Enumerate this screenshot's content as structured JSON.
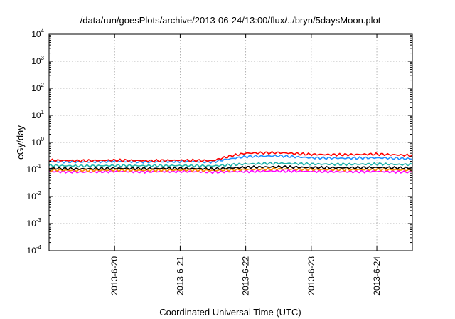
{
  "chart_data": {
    "type": "line",
    "title": "/data/run/goesPlots/archive/2013-06-24/13:00/flux/../bryn/5daysMoon.plot",
    "xlabel": "Coordinated Universal Time (UTC)",
    "ylabel": "cGy/day",
    "yscale": "log",
    "ylim": [
      0.0001,
      10000
    ],
    "y_ticks": [
      {
        "base": "10",
        "exp": "-4",
        "value": 0.0001
      },
      {
        "base": "10",
        "exp": "-3",
        "value": 0.001
      },
      {
        "base": "10",
        "exp": "-2",
        "value": 0.01
      },
      {
        "base": "10",
        "exp": "-1",
        "value": 0.1
      },
      {
        "base": "10",
        "exp": "0",
        "value": 1
      },
      {
        "base": "10",
        "exp": "1",
        "value": 10
      },
      {
        "base": "10",
        "exp": "2",
        "value": 100
      },
      {
        "base": "10",
        "exp": "3",
        "value": 1000
      },
      {
        "base": "10",
        "exp": "4",
        "value": 10000
      }
    ],
    "xlim": [
      "2013-06-19T00:00",
      "2013-06-24T13:00"
    ],
    "x_ticks": [
      {
        "label": "2013-6-20",
        "value": "2013-06-20T00:00"
      },
      {
        "label": "2013-6-21",
        "value": "2013-06-21T00:00"
      },
      {
        "label": "2013-6-22",
        "value": "2013-06-22T00:00"
      },
      {
        "label": "2013-6-23",
        "value": "2013-06-23T00:00"
      },
      {
        "label": "2013-6-24",
        "value": "2013-06-24T00:00"
      }
    ],
    "grid": true,
    "legend": "none",
    "series": [
      {
        "color": "#ff00ff",
        "x": [
          "2013-06-19T00:00",
          "2013-06-19T12:00",
          "2013-06-20T00:00",
          "2013-06-20T12:00",
          "2013-06-21T00:00",
          "2013-06-21T12:00",
          "2013-06-22T00:00",
          "2013-06-22T12:00",
          "2013-06-23T00:00",
          "2013-06-23T12:00",
          "2013-06-24T00:00",
          "2013-06-24T13:00"
        ],
        "values": [
          0.085,
          0.08,
          0.085,
          0.082,
          0.085,
          0.08,
          0.085,
          0.088,
          0.085,
          0.082,
          0.085,
          0.08
        ]
      },
      {
        "color": "#ff8c00",
        "x": [
          "2013-06-19T00:00",
          "2013-06-19T12:00",
          "2013-06-20T00:00",
          "2013-06-20T12:00",
          "2013-06-21T00:00",
          "2013-06-21T12:00",
          "2013-06-22T00:00",
          "2013-06-22T12:00",
          "2013-06-23T00:00",
          "2013-06-23T12:00",
          "2013-06-24T00:00",
          "2013-06-24T13:00"
        ],
        "values": [
          0.095,
          0.092,
          0.095,
          0.093,
          0.095,
          0.092,
          0.1,
          0.105,
          0.1,
          0.098,
          0.1,
          0.095
        ]
      },
      {
        "color": "#000000",
        "x": [
          "2013-06-19T00:00",
          "2013-06-19T12:00",
          "2013-06-20T00:00",
          "2013-06-20T12:00",
          "2013-06-21T00:00",
          "2013-06-21T12:00",
          "2013-06-22T00:00",
          "2013-06-22T12:00",
          "2013-06-23T00:00",
          "2013-06-23T12:00",
          "2013-06-24T00:00",
          "2013-06-24T13:00"
        ],
        "values": [
          0.11,
          0.105,
          0.11,
          0.108,
          0.11,
          0.105,
          0.12,
          0.125,
          0.118,
          0.115,
          0.118,
          0.112
        ]
      },
      {
        "color": "#20b2aa",
        "x": [
          "2013-06-19T00:00",
          "2013-06-19T12:00",
          "2013-06-20T00:00",
          "2013-06-20T12:00",
          "2013-06-21T00:00",
          "2013-06-21T12:00",
          "2013-06-22T00:00",
          "2013-06-22T12:00",
          "2013-06-23T00:00",
          "2013-06-23T12:00",
          "2013-06-24T00:00",
          "2013-06-24T13:00"
        ],
        "values": [
          0.14,
          0.135,
          0.14,
          0.137,
          0.14,
          0.135,
          0.16,
          0.17,
          0.16,
          0.155,
          0.16,
          0.15
        ]
      },
      {
        "color": "#1e90ff",
        "x": [
          "2013-06-19T00:00",
          "2013-06-19T12:00",
          "2013-06-20T00:00",
          "2013-06-20T12:00",
          "2013-06-21T00:00",
          "2013-06-21T12:00",
          "2013-06-22T00:00",
          "2013-06-22T12:00",
          "2013-06-23T00:00",
          "2013-06-23T12:00",
          "2013-06-24T00:00",
          "2013-06-24T13:00"
        ],
        "values": [
          0.2,
          0.19,
          0.2,
          0.19,
          0.2,
          0.19,
          0.3,
          0.32,
          0.27,
          0.26,
          0.27,
          0.25
        ]
      },
      {
        "color": "#ff0000",
        "x": [
          "2013-06-19T00:00",
          "2013-06-19T12:00",
          "2013-06-20T00:00",
          "2013-06-20T12:00",
          "2013-06-21T00:00",
          "2013-06-21T12:00",
          "2013-06-22T00:00",
          "2013-06-22T12:00",
          "2013-06-23T00:00",
          "2013-06-23T12:00",
          "2013-06-24T00:00",
          "2013-06-24T13:00"
        ],
        "values": [
          0.22,
          0.21,
          0.22,
          0.21,
          0.22,
          0.21,
          0.4,
          0.42,
          0.36,
          0.35,
          0.37,
          0.33
        ]
      }
    ]
  }
}
